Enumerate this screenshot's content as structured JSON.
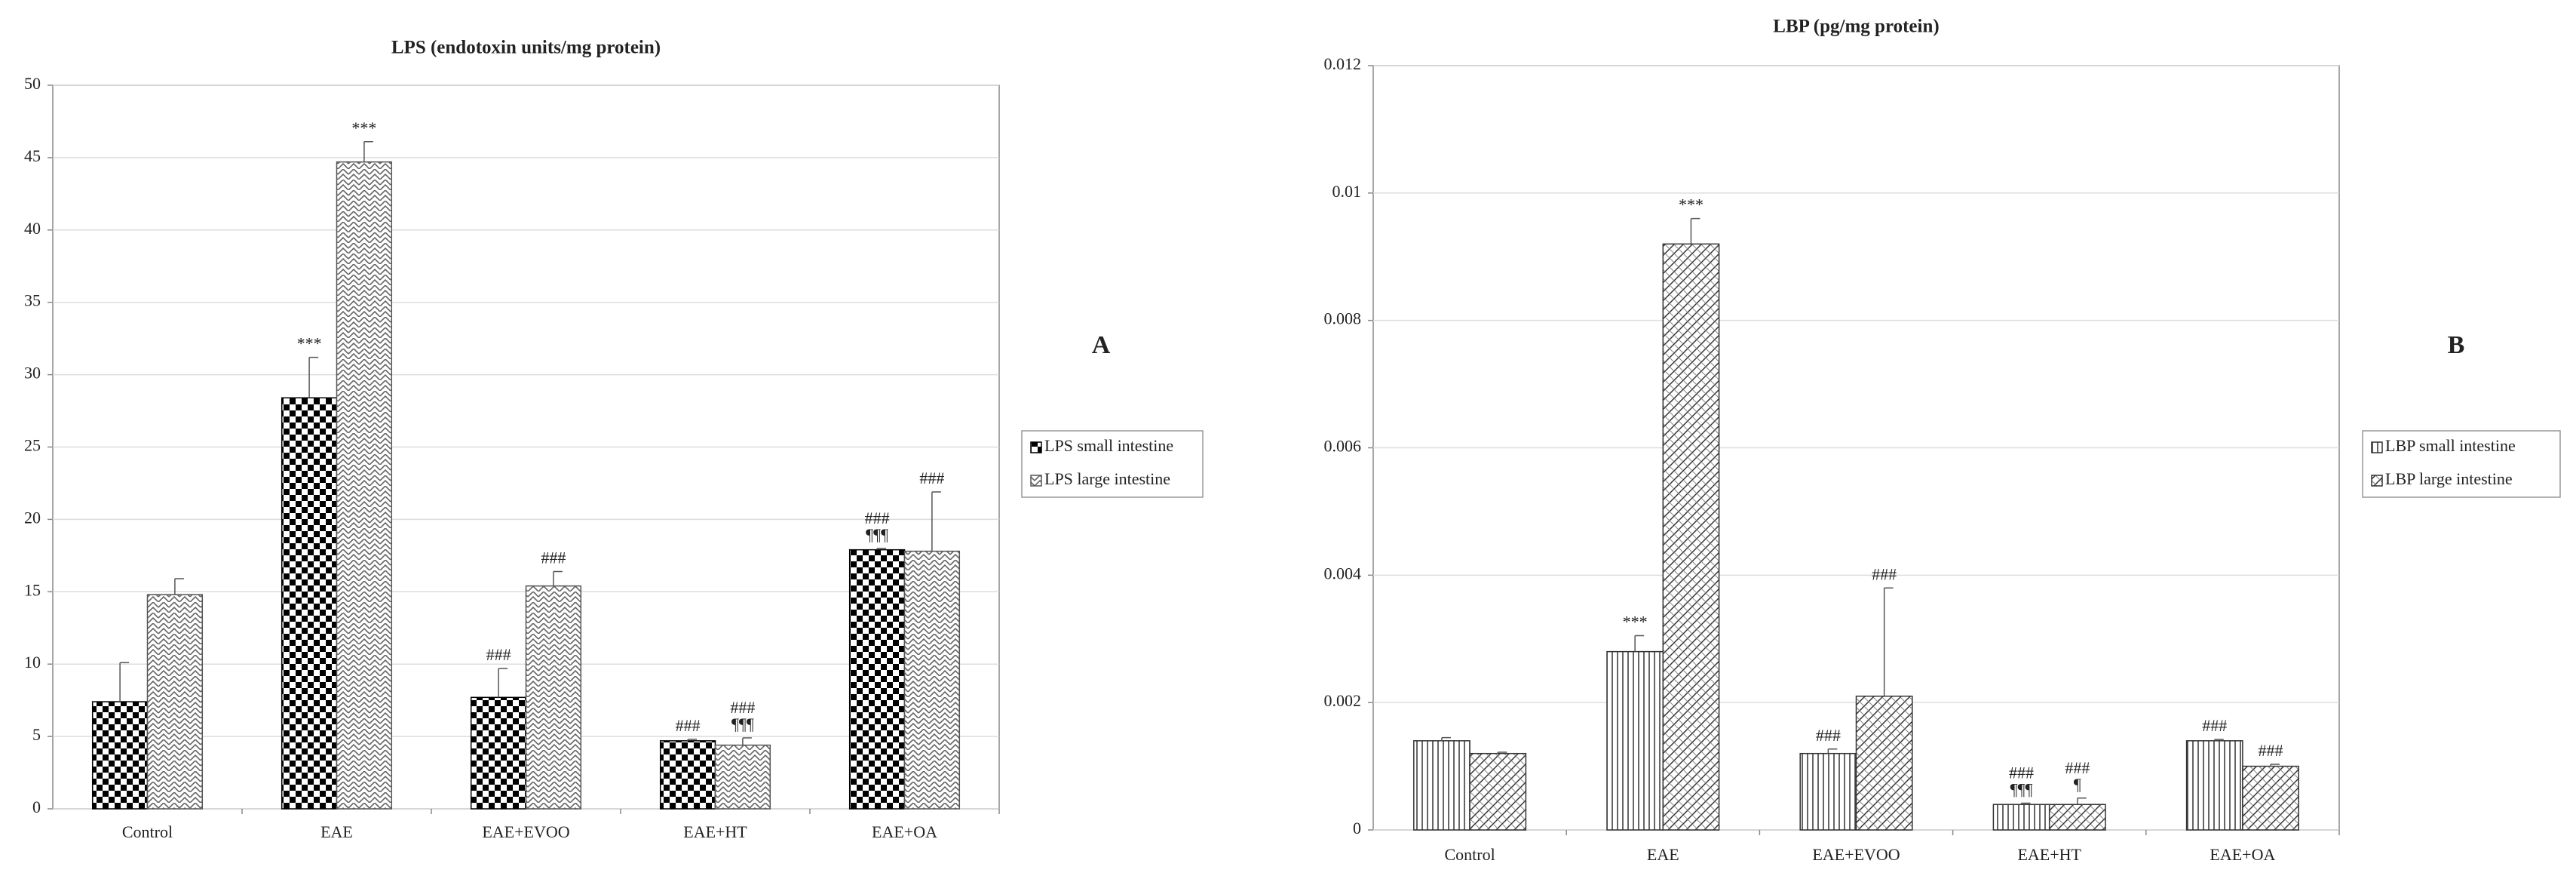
{
  "chart_data": [
    {
      "type": "bar",
      "title": "LPS (endotoxin units/mg protein)",
      "panel_label": "A",
      "categories": [
        "Control",
        "EAE",
        "EAE+EVOO",
        "EAE+HT",
        "EAE+OA"
      ],
      "series": [
        {
          "name": "LPS small intestine",
          "color": "#000000",
          "pattern": "checker",
          "values": [
            7.4,
            28.4,
            7.7,
            4.7,
            17.9
          ],
          "errors": [
            2.7,
            2.8,
            2.0,
            0.1,
            0.1
          ],
          "annotations": [
            null,
            [
              "***"
            ],
            [
              "###"
            ],
            [
              "###"
            ],
            [
              "###",
              "¶¶¶"
            ]
          ]
        },
        {
          "name": "LPS large intestine",
          "color": "#555555",
          "pattern": "zigzag",
          "values": [
            14.8,
            44.7,
            15.4,
            4.4,
            17.8
          ],
          "errors": [
            1.1,
            1.4,
            1.0,
            0.5,
            4.1
          ],
          "annotations": [
            null,
            [
              "***"
            ],
            [
              "###"
            ],
            [
              "###",
              "¶¶¶"
            ],
            [
              "###"
            ]
          ]
        }
      ],
      "ylim": [
        0,
        50
      ],
      "yticks": [
        0,
        5,
        10,
        15,
        20,
        25,
        30,
        35,
        40,
        45,
        50
      ],
      "grid": true,
      "legend": "right"
    },
    {
      "type": "bar",
      "title": "LBP (pg/mg protein)",
      "panel_label": "B",
      "categories": [
        "Control",
        "EAE",
        "EAE+EVOO",
        "EAE+HT",
        "EAE+OA"
      ],
      "series": [
        {
          "name": "LBP small intestine",
          "color": "#333333",
          "pattern": "vlines",
          "values": [
            0.0014,
            0.0028,
            0.0012,
            0.0004,
            0.0014
          ],
          "errors": [
            5e-05,
            0.00025,
            7e-05,
            2e-05,
            2e-05
          ],
          "annotations": [
            null,
            [
              "***"
            ],
            [
              "###"
            ],
            [
              "###",
              "¶¶¶"
            ],
            [
              "###"
            ]
          ]
        },
        {
          "name": "LBP large intestine",
          "color": "#333333",
          "pattern": "diag",
          "values": [
            0.0012,
            0.0092,
            0.0021,
            0.0004,
            0.001
          ],
          "errors": [
            2e-05,
            0.0004,
            0.0017,
            0.0001,
            3e-05
          ],
          "annotations": [
            null,
            [
              "***"
            ],
            [
              "###"
            ],
            [
              "###",
              "¶"
            ],
            [
              "###"
            ]
          ]
        }
      ],
      "ylim": [
        0,
        0.012
      ],
      "yticks": [
        0,
        0.002,
        0.004,
        0.006,
        0.008,
        0.01,
        0.012
      ],
      "grid": true,
      "legend": "right"
    }
  ]
}
